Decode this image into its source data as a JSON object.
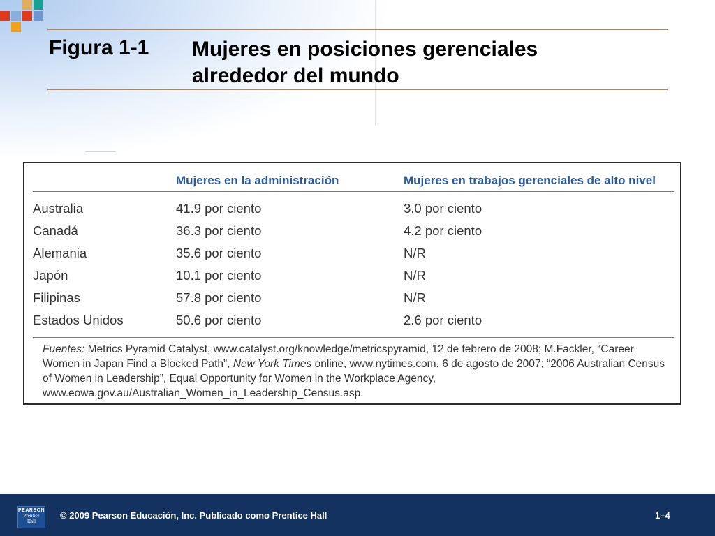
{
  "slide": {
    "figure_number": "Figura 1-1",
    "title_line1": "Mujeres en posiciones gerenciales",
    "title_line2": "alrededor del mundo"
  },
  "table": {
    "headers": [
      "",
      "Mujeres en la administración",
      "Mujeres en trabajos gerenciales de alto nivel"
    ],
    "rows": [
      [
        "Australia",
        "41.9 por ciento",
        "3.0 por ciento"
      ],
      [
        "Canadá",
        "36.3 por ciento",
        "4.2 por ciento"
      ],
      [
        "Alemania",
        "35.6 por ciento",
        "N/R"
      ],
      [
        "Japón",
        "10.1 por ciento",
        "N/R"
      ],
      [
        "Filipinas",
        "57.8 por ciento",
        "N/R"
      ],
      [
        "Estados Unidos",
        "50.6 por ciento",
        "2.6 por ciento"
      ]
    ],
    "source_label": "Fuentes:",
    "source_part1": " Metrics Pyramid Catalyst, www.catalyst.org/knowledge/metricspyramid, 12 de febrero de 2008; M.Fackler, “Career Women in Japan Find a Blocked Path”, ",
    "source_italic": "New York Times",
    "source_part2": " online, www.nytimes.com, 6 de agosto de 2007; “2006 Australian Census of Women in Leadership”, Equal Opportunity for Women in the Workplace Agency, www.eowa.gov.au/Australian_Women_in_Leadership_Census.asp."
  },
  "footer": {
    "logo_line1": "PEARSON",
    "logo_line2": "Prentice",
    "logo_line3": "Hall",
    "copyright": "© 2009 Pearson Educación, Inc. Publicado como Prentice Hall",
    "page": "1–4"
  },
  "colors": {
    "header_blue": "#2b5a9c",
    "footer_navy": "#14325f",
    "rule_brown": "#a8876a",
    "square_red": "#e03a1e",
    "square_orange": "#f2a11f",
    "square_teal": "#1aa092",
    "square_blue": "#3a6fb8"
  }
}
